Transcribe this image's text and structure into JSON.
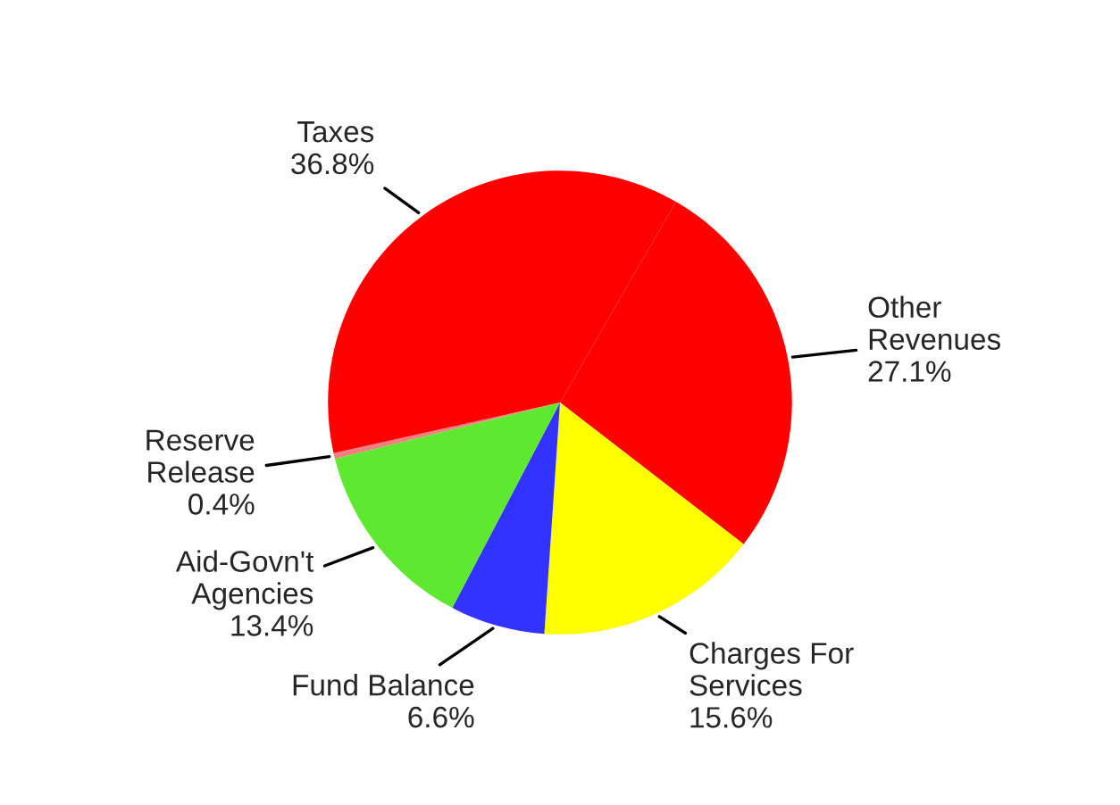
{
  "chart_data": {
    "type": "pie",
    "categories": [
      "Other Revenues",
      "Charges For Services",
      "Fund Balance",
      "Aid-Govn't Agencies",
      "Reserve Release",
      "Taxes"
    ],
    "values": [
      27.1,
      15.6,
      6.6,
      13.4,
      0.4,
      36.8
    ],
    "value_labels": [
      "27.1%",
      "15.6%",
      "6.6%",
      "13.4%",
      "0.4%",
      "36.8%"
    ],
    "colors": [
      "#ff0000",
      "#ffff00",
      "#3333ff",
      "#5ee830",
      "#f08080",
      "#ff0000"
    ]
  }
}
